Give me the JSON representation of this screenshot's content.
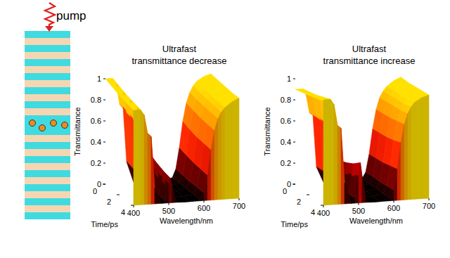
{
  "schematic": {
    "label": "pump"
  },
  "chart_data": [
    {
      "type": "surface",
      "title": "Ultrafast transmittance decrease",
      "xlabel": "Wavelength/nm",
      "ylabel": "Transmittance",
      "tlabel": "Time/ps",
      "xlim": [
        400,
        700
      ],
      "xticks": [
        400,
        500,
        600,
        700
      ],
      "ylim": [
        0,
        1
      ],
      "yticks": [
        0,
        0.2,
        0.4,
        0.6,
        0.8,
        1
      ],
      "tlim": [
        0,
        4
      ],
      "tticks": [
        0,
        2,
        4
      ],
      "x": [
        400,
        420,
        430,
        440,
        450,
        460,
        480,
        490,
        500,
        505,
        510,
        520,
        530,
        560,
        590,
        600,
        610,
        620,
        630,
        640,
        650,
        660,
        680,
        700
      ],
      "t": [
        0,
        1,
        2,
        3,
        4
      ],
      "values": [
        [
          1,
          1,
          0.95,
          0.75,
          0.72,
          0.2,
          0,
          0.05,
          0.25,
          0.38,
          0.25,
          0.05,
          0,
          0,
          0.02,
          0.1,
          0.3,
          0.55,
          0.72,
          0.82,
          0.88,
          0.92,
          0.96,
          0.98
        ],
        [
          0.97,
          0.97,
          0.92,
          0.72,
          0.69,
          0.18,
          0,
          0.04,
          0.21,
          0.32,
          0.21,
          0.04,
          0,
          0,
          0.02,
          0.09,
          0.28,
          0.52,
          0.7,
          0.8,
          0.86,
          0.9,
          0.95,
          0.97
        ],
        [
          0.94,
          0.94,
          0.89,
          0.7,
          0.67,
          0.17,
          0,
          0.03,
          0.18,
          0.28,
          0.18,
          0.03,
          0,
          0,
          0.02,
          0.08,
          0.26,
          0.5,
          0.68,
          0.79,
          0.85,
          0.89,
          0.94,
          0.96
        ],
        [
          0.92,
          0.92,
          0.87,
          0.68,
          0.65,
          0.16,
          0,
          0.03,
          0.16,
          0.25,
          0.16,
          0.03,
          0,
          0,
          0.01,
          0.08,
          0.25,
          0.49,
          0.67,
          0.78,
          0.84,
          0.88,
          0.93,
          0.95
        ],
        [
          0.9,
          0.9,
          0.85,
          0.67,
          0.64,
          0.15,
          0,
          0.02,
          0.15,
          0.23,
          0.15,
          0.02,
          0,
          0,
          0.01,
          0.07,
          0.24,
          0.48,
          0.66,
          0.77,
          0.83,
          0.87,
          0.92,
          0.95
        ]
      ]
    },
    {
      "type": "surface",
      "title": "Ultrafast transmittance increase",
      "xlabel": "Wavelength/nm",
      "ylabel": "Transmittance",
      "tlabel": "Time/ps",
      "xlim": [
        400,
        700
      ],
      "xticks": [
        400,
        500,
        600,
        700
      ],
      "ylim": [
        0,
        1
      ],
      "yticks": [
        0,
        0.2,
        0.4,
        0.6,
        0.8,
        1
      ],
      "tlim": [
        0,
        4
      ],
      "tticks": [
        0,
        2,
        4
      ],
      "x": [
        400,
        420,
        430,
        440,
        450,
        460,
        480,
        490,
        500,
        505,
        510,
        520,
        530,
        560,
        590,
        600,
        610,
        620,
        630,
        640,
        650,
        660,
        680,
        700
      ],
      "t": [
        0,
        1,
        2,
        3,
        4
      ],
      "values": [
        [
          0.9,
          0.9,
          0.85,
          0.67,
          0.64,
          0.15,
          0,
          0.02,
          0.15,
          0.23,
          0.15,
          0.02,
          0,
          0,
          0.01,
          0.07,
          0.24,
          0.48,
          0.66,
          0.77,
          0.83,
          0.87,
          0.92,
          0.95
        ],
        [
          0.92,
          0.92,
          0.87,
          0.68,
          0.65,
          0.16,
          0,
          0.03,
          0.16,
          0.25,
          0.16,
          0.03,
          0,
          0,
          0.01,
          0.08,
          0.25,
          0.49,
          0.67,
          0.78,
          0.84,
          0.88,
          0.93,
          0.95
        ],
        [
          0.94,
          0.94,
          0.89,
          0.7,
          0.67,
          0.17,
          0,
          0.03,
          0.18,
          0.28,
          0.18,
          0.03,
          0,
          0,
          0.02,
          0.08,
          0.26,
          0.5,
          0.68,
          0.79,
          0.85,
          0.89,
          0.94,
          0.96
        ],
        [
          0.97,
          0.97,
          0.92,
          0.72,
          0.69,
          0.18,
          0,
          0.04,
          0.21,
          0.32,
          0.21,
          0.04,
          0,
          0,
          0.02,
          0.09,
          0.28,
          0.52,
          0.7,
          0.8,
          0.86,
          0.9,
          0.95,
          0.97
        ],
        [
          1,
          1,
          0.95,
          0.75,
          0.72,
          0.2,
          0,
          0.05,
          0.25,
          0.38,
          0.25,
          0.05,
          0,
          0,
          0.02,
          0.1,
          0.3,
          0.55,
          0.72,
          0.82,
          0.88,
          0.92,
          0.96,
          0.98
        ]
      ]
    }
  ]
}
